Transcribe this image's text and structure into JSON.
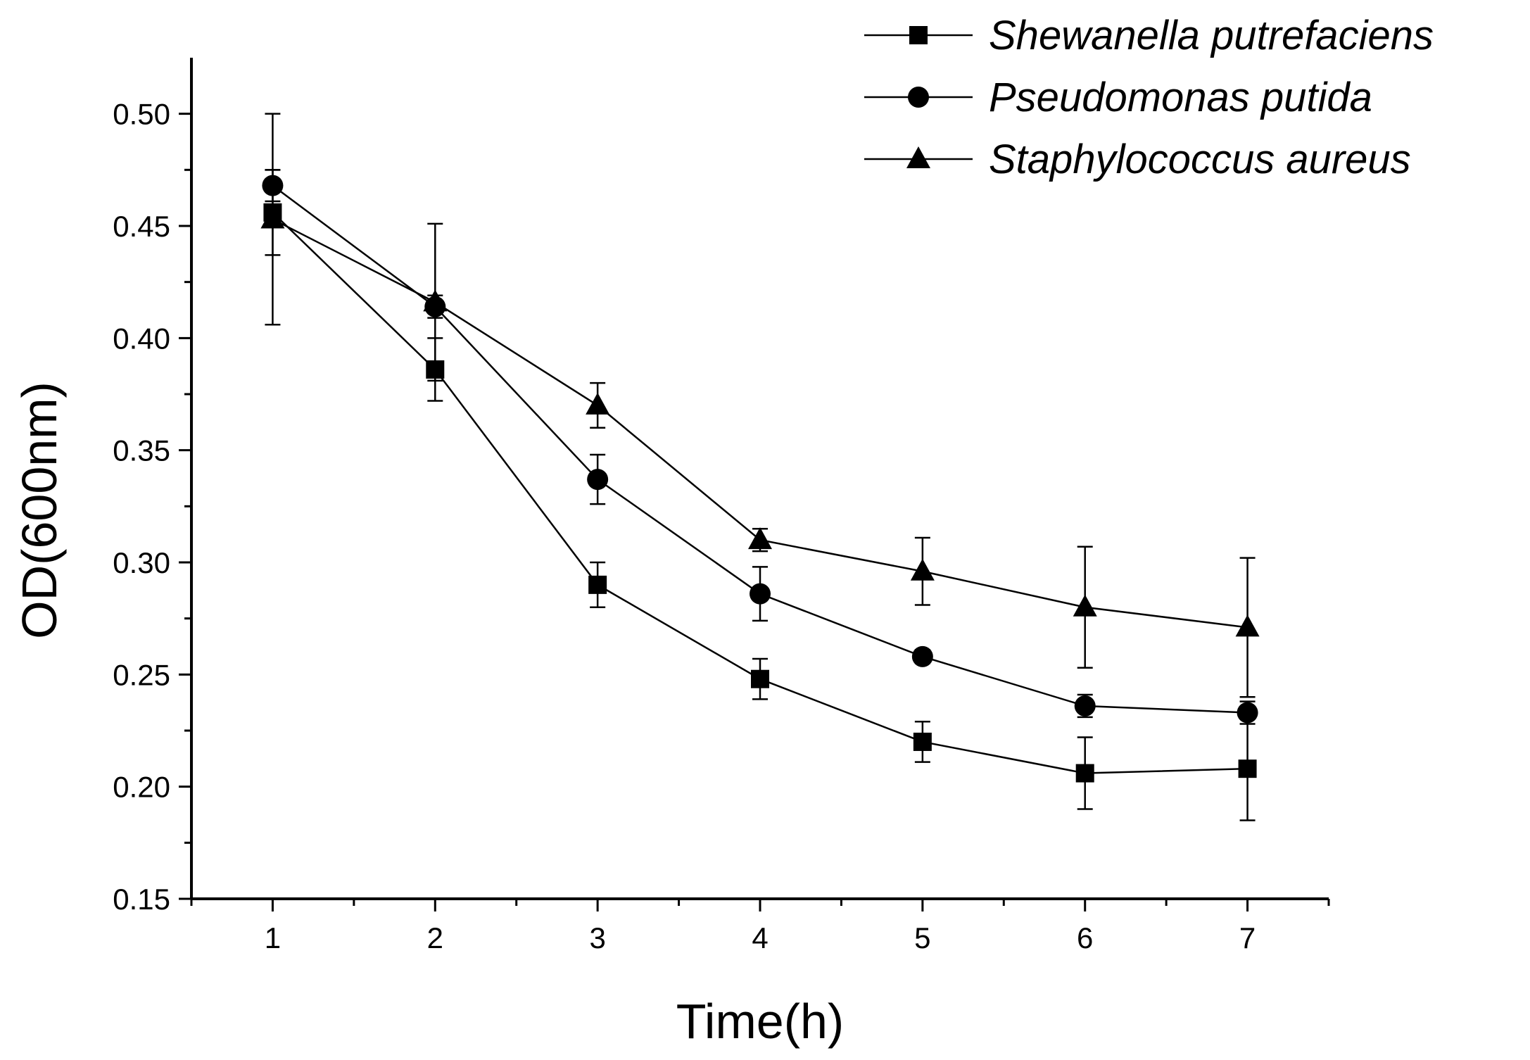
{
  "chart_data": {
    "type": "line",
    "title": "",
    "xlabel": "Time(h)",
    "ylabel": "OD(600nm)",
    "x": [
      1,
      2,
      3,
      4,
      5,
      6,
      7
    ],
    "xticks": [
      "1",
      "2",
      "3",
      "4",
      "5",
      "6",
      "7"
    ],
    "xlim": [
      0.5,
      7.5
    ],
    "ylim": [
      0.15,
      0.525
    ],
    "yticks": [
      "0.15",
      "0.20",
      "0.25",
      "0.30",
      "0.35",
      "0.40",
      "0.45",
      "0.50"
    ],
    "grid": false,
    "legend_position": "top-right",
    "series": [
      {
        "name": "Shewanella putrefaciens",
        "marker": "square",
        "values": [
          0.456,
          0.386,
          0.29,
          0.248,
          0.22,
          0.206,
          0.208
        ],
        "errors": [
          0.019,
          0.014,
          0.01,
          0.009,
          0.009,
          0.016,
          0.023
        ]
      },
      {
        "name": "Pseudomonas putida",
        "marker": "circle",
        "values": [
          0.468,
          0.414,
          0.337,
          0.286,
          0.258,
          0.236,
          0.233
        ],
        "errors": [
          0.007,
          0.005,
          0.011,
          0.012,
          0.003,
          0.005,
          0.005
        ]
      },
      {
        "name": "Staphylococcus aureus",
        "marker": "triangle",
        "values": [
          0.453,
          0.416,
          0.37,
          0.31,
          0.296,
          0.28,
          0.271
        ],
        "errors": [
          0.047,
          0.035,
          0.01,
          0.005,
          0.015,
          0.027,
          0.031
        ]
      }
    ]
  }
}
